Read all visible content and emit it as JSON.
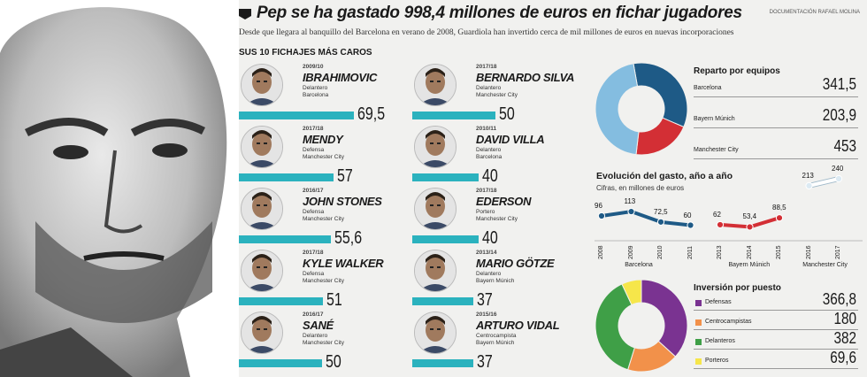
{
  "header": {
    "title": "Pep se ha gastado 998,4 millones de euros en fichar jugadores",
    "credit": "DOCUMENTACIÓN RAFAEL MOLINA",
    "subtitle": "Desde que llegara al banquillo del Barcelona en verano de 2008, Guardiola han invertido cerca de mil millones de euros en nuevas incorporaciones"
  },
  "signings": {
    "title": "SUS 10 FICHAJES MÁS CAROS",
    "bar_color": "#2bb2be",
    "players": [
      {
        "season": "2009/10",
        "name": "IBRAHIMOVIC",
        "position": "Delantero",
        "club": "Barcelona",
        "fee": 69.5,
        "fee_label": "69,5"
      },
      {
        "season": "2017/18",
        "name": "MENDY",
        "position": "Defensa",
        "club": "Manchester City",
        "fee": 57,
        "fee_label": "57"
      },
      {
        "season": "2016/17",
        "name": "JOHN STONES",
        "position": "Defensa",
        "club": "Manchester City",
        "fee": 55.6,
        "fee_label": "55,6"
      },
      {
        "season": "2017/18",
        "name": "KYLE WALKER",
        "position": "Defensa",
        "club": "Manchester City",
        "fee": 51,
        "fee_label": "51"
      },
      {
        "season": "2016/17",
        "name": "SANÉ",
        "position": "Delantero",
        "club": "Manchester City",
        "fee": 50,
        "fee_label": "50"
      },
      {
        "season": "2017/18",
        "name": "BERNARDO SILVA",
        "position": "Delantero",
        "club": "Manchester City",
        "fee": 50,
        "fee_label": "50"
      },
      {
        "season": "2010/11",
        "name": "DAVID VILLA",
        "position": "Delantero",
        "club": "Barcelona",
        "fee": 40,
        "fee_label": "40"
      },
      {
        "season": "2017/18",
        "name": "EDERSON",
        "position": "Portero",
        "club": "Manchester City",
        "fee": 40,
        "fee_label": "40"
      },
      {
        "season": "2013/14",
        "name": "MARIO GÖTZE",
        "position": "Delantero",
        "club": "Bayern Múnich",
        "fee": 37,
        "fee_label": "37"
      },
      {
        "season": "2015/16",
        "name": "ARTURO VIDAL",
        "position": "Centrocampista",
        "club": "Bayern Múnich",
        "fee": 37,
        "fee_label": "37"
      }
    ]
  },
  "chart_data": [
    {
      "type": "pie",
      "title": "Reparto por equipos",
      "categories": [
        "Barcelona",
        "Bayern Múnich",
        "Manchester City"
      ],
      "values": [
        341.5,
        203.9,
        453
      ],
      "value_labels": [
        "341,5",
        "203,9",
        "453"
      ],
      "colors": [
        "#1e5a86",
        "#d32f35",
        "#84bde0"
      ]
    },
    {
      "type": "line",
      "title": "Evolución del gasto, año a año",
      "subtitle": "Cifras, en millones de euros",
      "x": [
        "2008",
        "2009",
        "2010",
        "2011",
        "2013",
        "2014",
        "2015",
        "2016",
        "2017"
      ],
      "series": [
        {
          "name": "Barcelona",
          "color": "#1e5a86",
          "x": [
            "2008",
            "2009",
            "2010",
            "2011"
          ],
          "values": [
            96,
            113,
            72.5,
            60
          ],
          "labels": [
            "96",
            "113",
            "72,5",
            "60"
          ]
        },
        {
          "name": "Bayern Múnich",
          "color": "#d32f35",
          "x": [
            "2013",
            "2014",
            "2015"
          ],
          "values": [
            62,
            53.4,
            88.5
          ],
          "labels": [
            "62",
            "53,4",
            "88,5"
          ]
        },
        {
          "name": "Manchester City",
          "color": "#ffffff",
          "x": [
            "2016",
            "2017"
          ],
          "values": [
            213,
            240
          ],
          "labels": [
            "213",
            "240"
          ]
        }
      ]
    },
    {
      "type": "pie",
      "title": "Inversión por puesto",
      "categories": [
        "Defensas",
        "Centrocampistas",
        "Delanteros",
        "Porteros"
      ],
      "values": [
        366.8,
        180,
        382,
        69.6
      ],
      "value_labels": [
        "366,8",
        "180",
        "382",
        "69,6"
      ],
      "colors": [
        "#7a3391",
        "#f2914a",
        "#3f9f47",
        "#f6e64a"
      ]
    }
  ]
}
